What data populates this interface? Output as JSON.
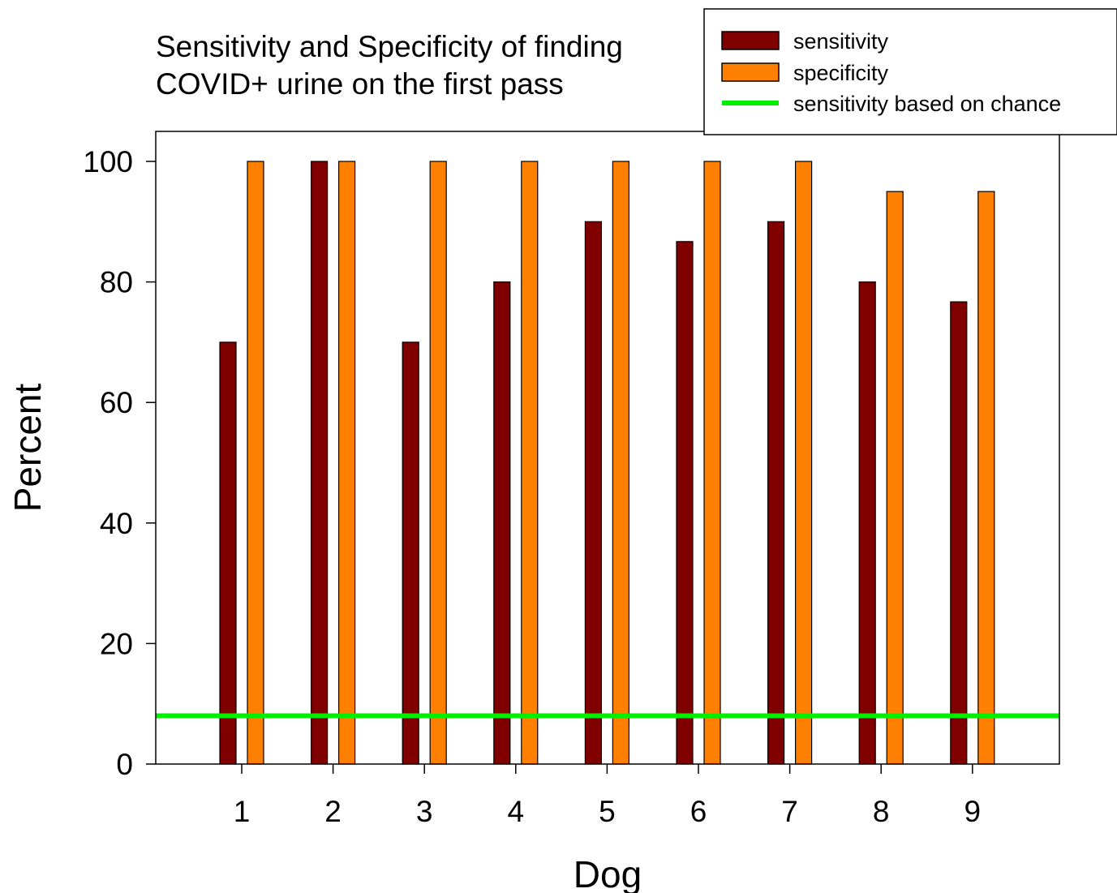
{
  "colors": {
    "sensitivity": "#800000",
    "specificity": "#ff8000",
    "chance_line": "#00ee00",
    "frame": "#000000",
    "background": "#ffffff"
  },
  "chart_data": {
    "type": "bar",
    "title_lines": [
      "Sensitivity and Specificity of finding",
      "COVID+ urine on the first pass"
    ],
    "xlabel": "Dog",
    "ylabel": "Percent",
    "categories": [
      "1",
      "2",
      "3",
      "4",
      "5",
      "6",
      "7",
      "8",
      "9"
    ],
    "series": [
      {
        "name": "sensitivity",
        "color_key": "sensitivity",
        "values": [
          70,
          100,
          70,
          80,
          90,
          86.7,
          90,
          80,
          76.7
        ]
      },
      {
        "name": "specificity",
        "color_key": "specificity",
        "values": [
          100,
          100,
          100,
          100,
          100,
          100,
          100,
          95,
          95
        ]
      }
    ],
    "reference_lines": [
      {
        "name": "sensitivity based on chance",
        "value": 8,
        "color_key": "chance_line"
      }
    ],
    "ylim": [
      0,
      105
    ],
    "yticks": [
      0,
      20,
      40,
      60,
      80,
      100
    ],
    "legend": {
      "placement": "top-right",
      "entries": [
        {
          "label": "sensitivity",
          "kind": "bar",
          "color_key": "sensitivity"
        },
        {
          "label": "specificity",
          "kind": "bar",
          "color_key": "specificity"
        },
        {
          "label": "sensitivity based on chance",
          "kind": "line",
          "color_key": "chance_line"
        }
      ]
    },
    "grid": false
  }
}
